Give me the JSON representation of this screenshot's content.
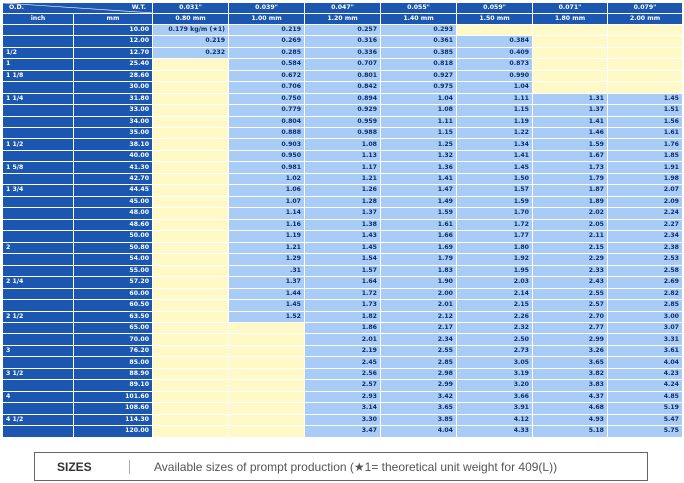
{
  "header": {
    "od_label": "O.D.",
    "wt_label": "W.T.",
    "inch_label": "inch",
    "mm_label": "mm",
    "wt_inch": [
      "0.031\"",
      "0.039\"",
      "0.047\"",
      "0.055\"",
      "0.059\"",
      "0.071\"",
      "0.079\""
    ],
    "wt_mm": [
      "0.80 mm",
      "1.00 mm",
      "1.20 mm",
      "1.40 mm",
      "1.50 mm",
      "1.80 mm",
      "2.00 mm"
    ]
  },
  "rows": [
    {
      "inch": "",
      "mm": "10.00",
      "v": [
        "0.179 kg/m (★1)",
        "0.219",
        "0.257",
        "0.293",
        null,
        null,
        null
      ]
    },
    {
      "inch": "",
      "mm": "12.00",
      "v": [
        "0.219",
        "0.269",
        "0.316",
        "0.361",
        "0.384",
        null,
        null
      ]
    },
    {
      "inch": "1/2",
      "mm": "12.70",
      "v": [
        "0.232",
        "0.285",
        "0.336",
        "0.385",
        "0.409",
        null,
        null
      ]
    },
    {
      "inch": "1",
      "mm": "25.40",
      "v": [
        null,
        "0.584",
        "0.707",
        "0.818",
        "0.873",
        null,
        null
      ]
    },
    {
      "inch": "1 1/8",
      "mm": "28.60",
      "v": [
        null,
        "0.672",
        "0.801",
        "0.927",
        "0.990",
        null,
        null
      ]
    },
    {
      "inch": "",
      "mm": "30.00",
      "v": [
        null,
        "0.706",
        "0.842",
        "0.975",
        "1.04",
        null,
        null
      ]
    },
    {
      "inch": "1 1/4",
      "mm": "31.80",
      "v": [
        null,
        "0.750",
        "0.894",
        "1.04",
        "1.11",
        "1.31",
        "1.45"
      ]
    },
    {
      "inch": "",
      "mm": "33.00",
      "v": [
        null,
        "0.779",
        "0.929",
        "1.08",
        "1.15",
        "1.37",
        "1.51"
      ]
    },
    {
      "inch": "",
      "mm": "34.00",
      "v": [
        null,
        "0.804",
        "0.959",
        "1.11",
        "1.19",
        "1.41",
        "1.56"
      ]
    },
    {
      "inch": "",
      "mm": "35.00",
      "v": [
        null,
        "0.888",
        "0.988",
        "1.15",
        "1.22",
        "1.46",
        "1.61"
      ]
    },
    {
      "inch": "1 1/2",
      "mm": "38.10",
      "v": [
        null,
        "0.903",
        "1.08",
        "1.25",
        "1.34",
        "1.59",
        "1.76"
      ]
    },
    {
      "inch": "",
      "mm": "40.00",
      "v": [
        null,
        "0.950",
        "1.13",
        "1.32",
        "1.41",
        "1.67",
        "1.85"
      ]
    },
    {
      "inch": "1 5/8",
      "mm": "41.30",
      "v": [
        null,
        "0.981",
        "1.17",
        "1.36",
        "1.45",
        "1.73",
        "1.91"
      ]
    },
    {
      "inch": "",
      "mm": "42.70",
      "v": [
        null,
        "1.02",
        "1.21",
        "1.41",
        "1.50",
        "1.79",
        "1.98"
      ]
    },
    {
      "inch": "1 3/4",
      "mm": "44.45",
      "v": [
        null,
        "1.06",
        "1.26",
        "1.47",
        "1.57",
        "1.87",
        "2.07"
      ]
    },
    {
      "inch": "",
      "mm": "45.00",
      "v": [
        null,
        "1.07",
        "1.28",
        "1.49",
        "1.59",
        "1.89",
        "2.09"
      ]
    },
    {
      "inch": "",
      "mm": "48.00",
      "v": [
        null,
        "1.14",
        "1.37",
        "1.59",
        "1.70",
        "2.02",
        "2.24"
      ]
    },
    {
      "inch": "",
      "mm": "48.60",
      "v": [
        null,
        "1.16",
        "1.38",
        "1.61",
        "1.72",
        "2.05",
        "2.27"
      ]
    },
    {
      "inch": "",
      "mm": "50.00",
      "v": [
        null,
        "1.19",
        "1.43",
        "1.66",
        "1.77",
        "2.11",
        "2.34"
      ]
    },
    {
      "inch": "2",
      "mm": "50.80",
      "v": [
        null,
        "1.21",
        "1.45",
        "1.69",
        "1.80",
        "2.15",
        "2.38"
      ]
    },
    {
      "inch": "",
      "mm": "54.00",
      "v": [
        null,
        "1.29",
        "1.54",
        "1.79",
        "1.92",
        "2.29",
        "2.53"
      ]
    },
    {
      "inch": "",
      "mm": "55.00",
      "v": [
        null,
        ".31",
        "1.57",
        "1.83",
        "1.95",
        "2.33",
        "2.58"
      ]
    },
    {
      "inch": "2 1/4",
      "mm": "57.20",
      "v": [
        null,
        "1.37",
        "1.64",
        "1.90",
        "2.03",
        "2.43",
        "2.69"
      ]
    },
    {
      "inch": "",
      "mm": "60.00",
      "v": [
        null,
        "1.44",
        "1.72",
        "2.00",
        "2.14",
        "2.55",
        "2.82"
      ]
    },
    {
      "inch": "",
      "mm": "60.50",
      "v": [
        null,
        "1.45",
        "1.73",
        "2.01",
        "2.15",
        "2.57",
        "2.85"
      ]
    },
    {
      "inch": "2 1/2",
      "mm": "63.50",
      "v": [
        null,
        "1.52",
        "1.82",
        "2.12",
        "2.26",
        "2.70",
        "3.00"
      ]
    },
    {
      "inch": "",
      "mm": "65.00",
      "v": [
        null,
        null,
        "1.86",
        "2.17",
        "2.32",
        "2.77",
        "3.07"
      ]
    },
    {
      "inch": "",
      "mm": "70.00",
      "v": [
        null,
        null,
        "2.01",
        "2.34",
        "2.50",
        "2.99",
        "3.31"
      ]
    },
    {
      "inch": "3",
      "mm": "76.20",
      "v": [
        null,
        null,
        "2.19",
        "2.55",
        "2.73",
        "3.26",
        "3.61"
      ]
    },
    {
      "inch": "",
      "mm": "85.00",
      "v": [
        null,
        null,
        "2.45",
        "2.85",
        "3.05",
        "3.65",
        "4.04"
      ]
    },
    {
      "inch": "3 1/2",
      "mm": "88.90",
      "v": [
        null,
        null,
        "2.56",
        "2.98",
        "3.19",
        "3.82",
        "4.23"
      ]
    },
    {
      "inch": "",
      "mm": "89.10",
      "v": [
        null,
        null,
        "2.57",
        "2.99",
        "3.20",
        "3.83",
        "4.24"
      ]
    },
    {
      "inch": "4",
      "mm": "101.60",
      "v": [
        null,
        null,
        "2.93",
        "3.42",
        "3.66",
        "4.37",
        "4.85"
      ]
    },
    {
      "inch": "",
      "mm": "108.60",
      "v": [
        null,
        null,
        "3.14",
        "3.65",
        "3.91",
        "4.68",
        "5.19"
      ]
    },
    {
      "inch": "4 1/2",
      "mm": "114.30",
      "v": [
        null,
        null,
        "3.30",
        "3.85",
        "4.12",
        "4.93",
        "5.47"
      ]
    },
    {
      "inch": "",
      "mm": "120.00",
      "v": [
        null,
        null,
        "3.47",
        "4.04",
        "4.33",
        "5.18",
        "5.75"
      ]
    }
  ],
  "caption": {
    "title": "SIZES",
    "text": "Available sizes of prompt production (★1= theoretical unit weight for 409(L))"
  },
  "colors": {
    "header_blue": "#1b57b0",
    "value_blue": "#a9ccf7",
    "empty_cream": "#fff9c8"
  }
}
